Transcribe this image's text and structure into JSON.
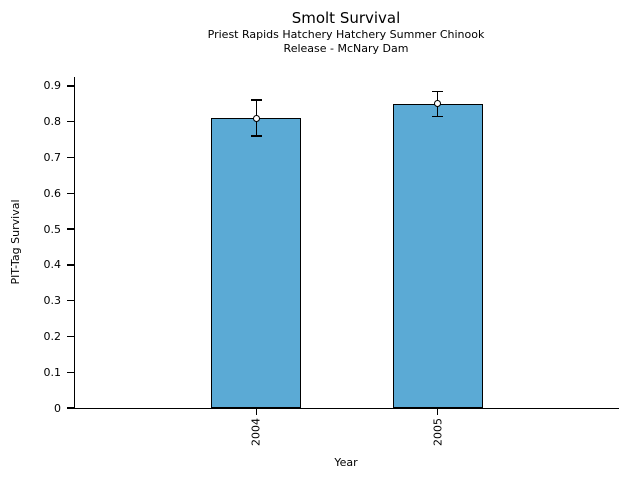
{
  "chart_data": {
    "type": "bar",
    "title": "Smolt Survival",
    "subtitle_line1": "Priest Rapids Hatchery Hatchery Summer Chinook",
    "subtitle_line2": "Release - McNary Dam",
    "xlabel": "Year",
    "ylabel": "PIT-Tag Survival",
    "categories": [
      "2004",
      "2005"
    ],
    "values": [
      0.81,
      0.85
    ],
    "error_low": [
      0.76,
      0.815
    ],
    "error_high": [
      0.86,
      0.885
    ],
    "ylim": [
      0,
      0.925
    ],
    "yticks": {
      "values": [
        0,
        0.1,
        0.2,
        0.3,
        0.4,
        0.5,
        0.6,
        0.7,
        0.8,
        0.9
      ],
      "labels": [
        "0",
        "0.1",
        "0.2",
        "0.3",
        "0.4",
        "0.5",
        "0.6",
        "0.7",
        "0.8",
        "0.9"
      ]
    },
    "bar_color": "#5BAAD5",
    "bar_edge_color": "#000000",
    "error_color": "#000000",
    "grid": false,
    "legend": "none"
  }
}
